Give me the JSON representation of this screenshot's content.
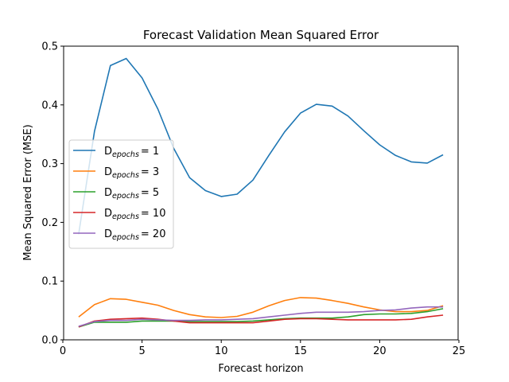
{
  "chart_data": {
    "type": "line",
    "title": "Forecast Validation Mean Squared Error",
    "xlabel": "Forecast horizon",
    "ylabel": "Mean Squared Error (MSE)",
    "xlim": [
      0.05,
      24.95
    ],
    "ylim": [
      0.0,
      0.5
    ],
    "xticks": [
      0,
      5,
      10,
      15,
      20,
      25
    ],
    "yticks": [
      0.0,
      0.1,
      0.2,
      0.3,
      0.4,
      0.5
    ],
    "xtick_labels": [
      "0",
      "5",
      "10",
      "15",
      "20",
      "25"
    ],
    "ytick_labels": [
      "0.0",
      "0.1",
      "0.2",
      "0.3",
      "0.4",
      "0.5"
    ],
    "grid": false,
    "legend_position": "center-left",
    "x": [
      1,
      2,
      3,
      4,
      5,
      6,
      7,
      8,
      9,
      10,
      11,
      12,
      13,
      14,
      15,
      16,
      17,
      18,
      19,
      20,
      21,
      22,
      23,
      24
    ],
    "series": [
      {
        "name": "D_epochs = 1",
        "base": "D",
        "sub": "epochs",
        "eq": "= 1",
        "color": "#1f77b4",
        "values": [
          0.18,
          0.355,
          0.467,
          0.479,
          0.446,
          0.393,
          0.326,
          0.276,
          0.254,
          0.244,
          0.248,
          0.272,
          0.314,
          0.354,
          0.386,
          0.401,
          0.398,
          0.381,
          0.356,
          0.332,
          0.314,
          0.303,
          0.301,
          0.315
        ]
      },
      {
        "name": "D_epochs = 3",
        "base": "D",
        "sub": "epochs",
        "eq": "= 3",
        "color": "#ff7f0e",
        "values": [
          0.039,
          0.06,
          0.07,
          0.069,
          0.064,
          0.059,
          0.05,
          0.043,
          0.039,
          0.038,
          0.04,
          0.047,
          0.058,
          0.067,
          0.072,
          0.071,
          0.067,
          0.062,
          0.056,
          0.051,
          0.048,
          0.048,
          0.05,
          0.058
        ]
      },
      {
        "name": "D_epochs = 5",
        "base": "D",
        "sub": "epochs",
        "eq": "= 5",
        "color": "#2ca02c",
        "values": [
          0.022,
          0.03,
          0.03,
          0.03,
          0.032,
          0.032,
          0.032,
          0.031,
          0.031,
          0.031,
          0.031,
          0.032,
          0.034,
          0.036,
          0.037,
          0.037,
          0.037,
          0.039,
          0.043,
          0.044,
          0.044,
          0.045,
          0.048,
          0.053
        ]
      },
      {
        "name": "D_epochs = 10",
        "base": "D",
        "sub": "epochs",
        "eq": "= 10",
        "color": "#d62728",
        "values": [
          0.022,
          0.032,
          0.035,
          0.036,
          0.037,
          0.035,
          0.032,
          0.029,
          0.029,
          0.029,
          0.029,
          0.029,
          0.032,
          0.035,
          0.036,
          0.036,
          0.035,
          0.034,
          0.034,
          0.034,
          0.034,
          0.035,
          0.039,
          0.042
        ]
      },
      {
        "name": "D_epochs = 20",
        "base": "D",
        "sub": "epochs",
        "eq": "= 20",
        "color": "#9467bd",
        "values": [
          0.023,
          0.031,
          0.033,
          0.033,
          0.035,
          0.034,
          0.033,
          0.033,
          0.034,
          0.034,
          0.035,
          0.036,
          0.039,
          0.042,
          0.045,
          0.047,
          0.047,
          0.047,
          0.048,
          0.05,
          0.051,
          0.054,
          0.056,
          0.056
        ]
      }
    ]
  }
}
